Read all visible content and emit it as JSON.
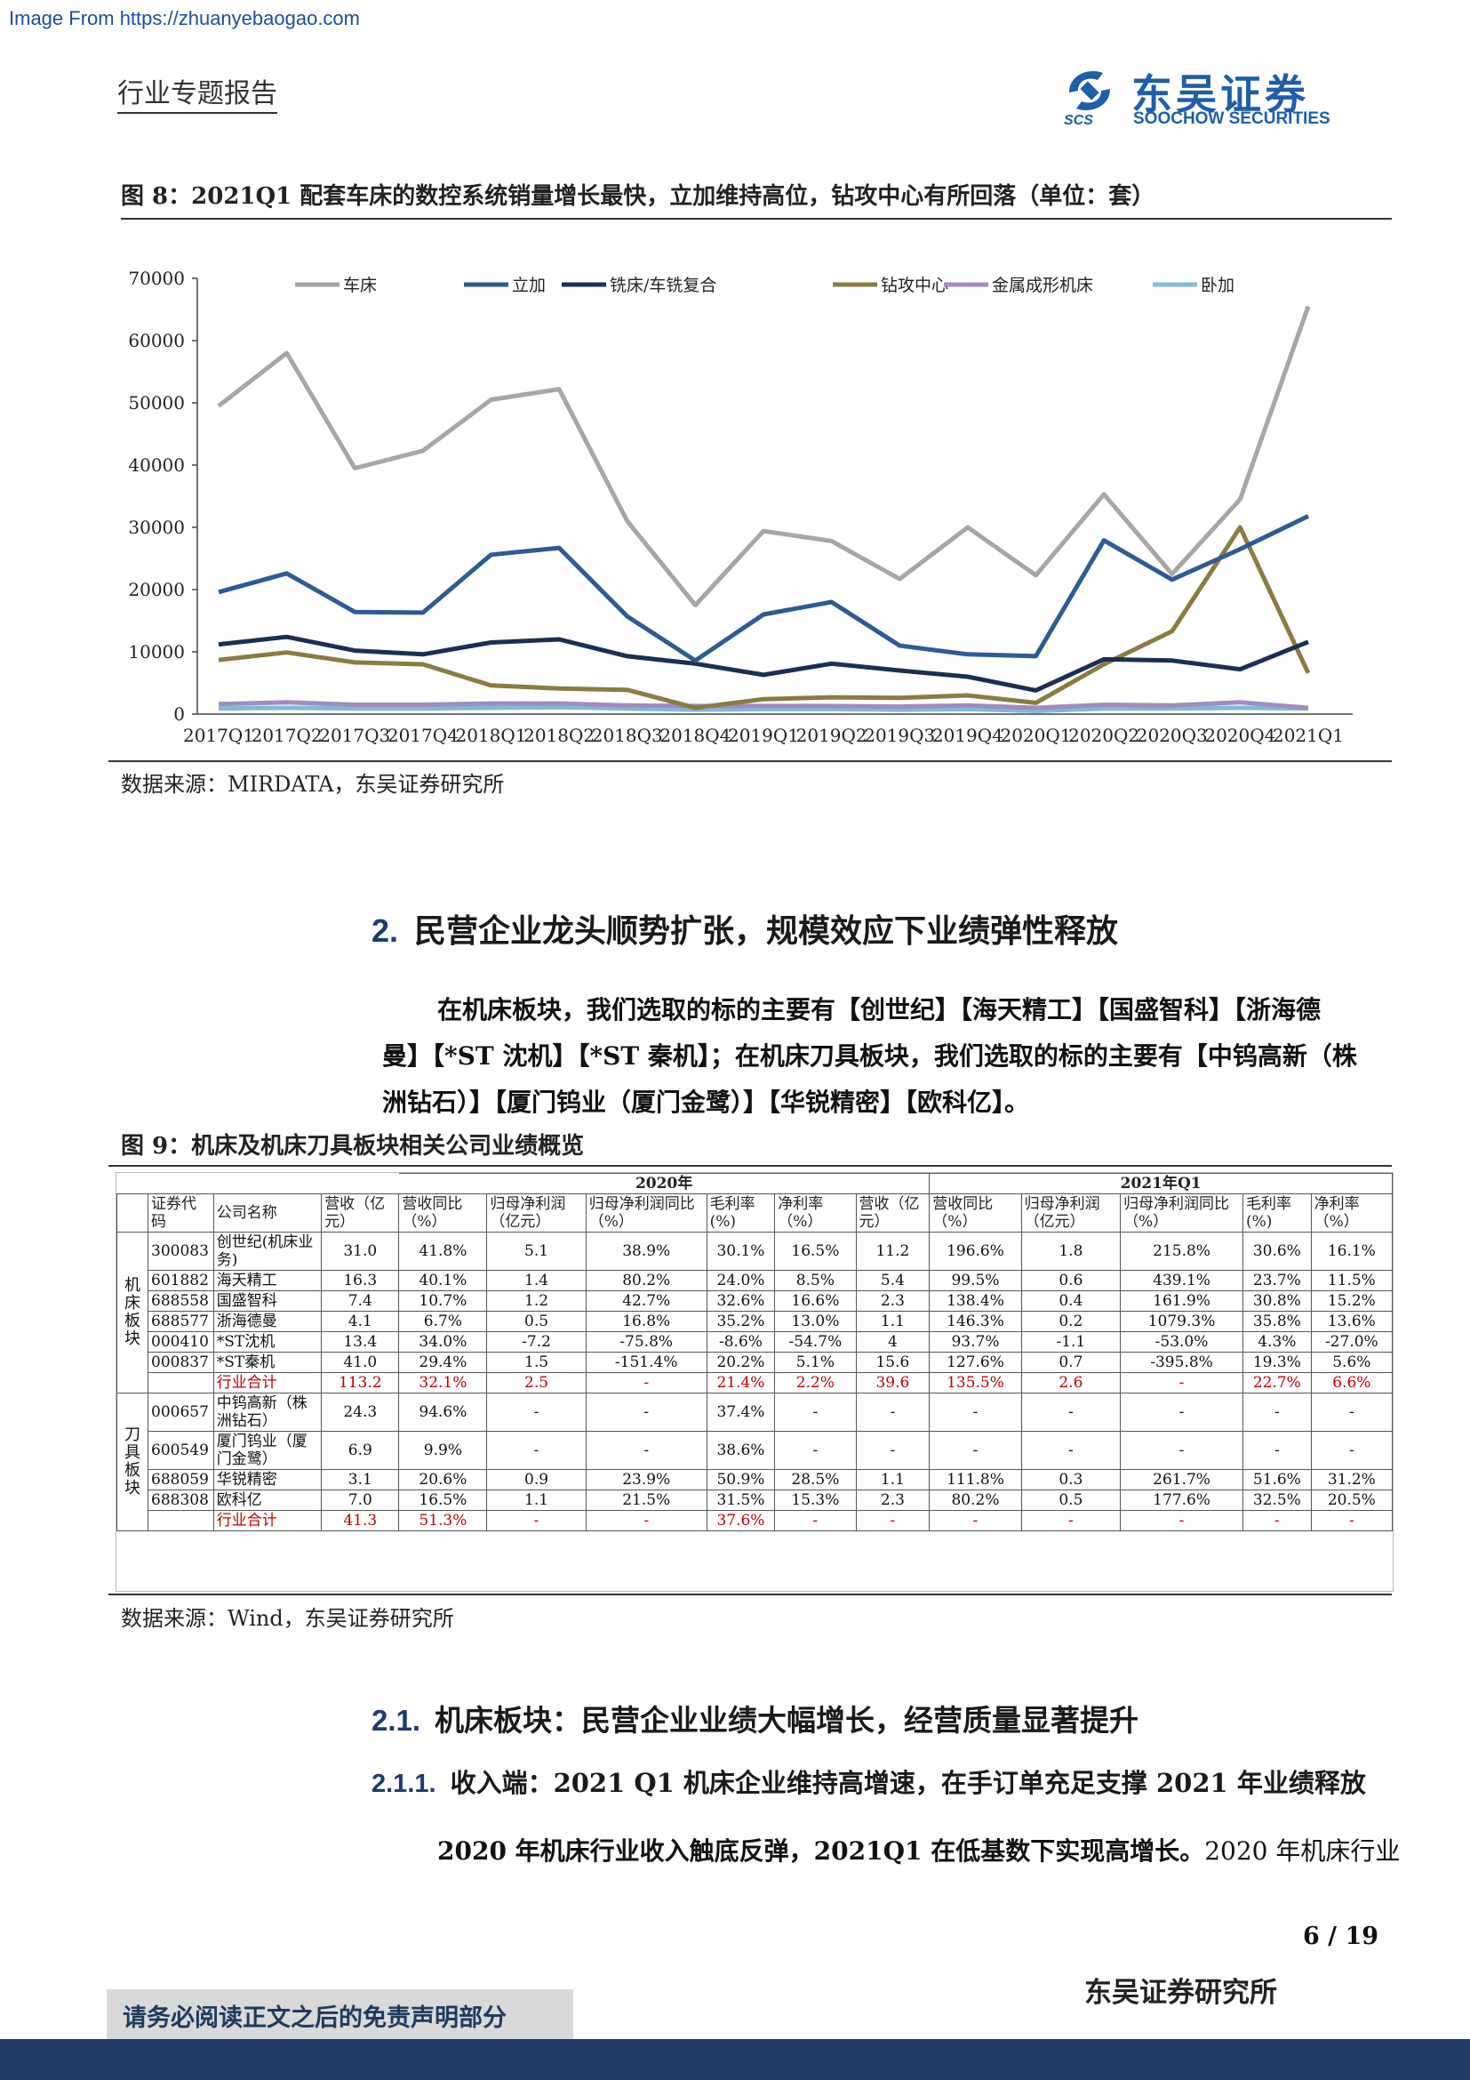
{
  "watermark": "Image From https://zhuanyebaogao.com",
  "header": {
    "report_type": "行业专题报告",
    "logo_cn": "东吴证券",
    "logo_en": "SOOCHOW SECURITIES",
    "logo_mark": "SCS"
  },
  "figure8": {
    "title": "图 8：2021Q1 配套车床的数控系统销量增长最快，立加维持高位，钻攻中心有所回落（单位：套）",
    "source": "数据来源：MIRDATA，东吴证券研究所"
  },
  "chart_data": {
    "type": "line",
    "title": "",
    "xlabel": "",
    "ylabel": "",
    "ylim": [
      0,
      70000
    ],
    "yticks": [
      0,
      10000,
      20000,
      30000,
      40000,
      50000,
      60000,
      70000
    ],
    "grid": false,
    "legend_position": "top",
    "categories": [
      "2017Q1",
      "2017Q2",
      "2017Q3",
      "2017Q4",
      "2018Q1",
      "2018Q2",
      "2018Q3",
      "2018Q4",
      "2019Q1",
      "2019Q2",
      "2019Q3",
      "2019Q4",
      "2020Q1",
      "2020Q2",
      "2020Q3",
      "2020Q4",
      "2021Q1"
    ],
    "series": [
      {
        "name": "车床",
        "color": "#a6a6a6",
        "values": [
          49500,
          58000,
          39500,
          42300,
          50500,
          52200,
          31000,
          17500,
          29400,
          27800,
          21700,
          30000,
          22300,
          35300,
          22500,
          34500,
          65500
        ]
      },
      {
        "name": "立加",
        "color": "#2e5b94",
        "values": [
          19600,
          22600,
          16400,
          16300,
          25600,
          26700,
          15700,
          8600,
          16000,
          18000,
          11000,
          9600,
          9300,
          27900,
          21600,
          26500,
          31800
        ]
      },
      {
        "name": "铣床/车铣复合",
        "color": "#1b2f52",
        "values": [
          11200,
          12400,
          10200,
          9600,
          11500,
          12000,
          9300,
          8100,
          6300,
          8100,
          7000,
          6000,
          3800,
          8800,
          8600,
          7200,
          11600
        ]
      },
      {
        "name": "钻攻中心",
        "color": "#8a7b41",
        "values": [
          8700,
          9900,
          8300,
          8000,
          4600,
          4100,
          3900,
          1000,
          2400,
          2700,
          2600,
          3000,
          1800,
          8000,
          13300,
          30000,
          6600
        ]
      },
      {
        "name": "金属成形机床",
        "color": "#a08cc0",
        "values": [
          1600,
          1900,
          1500,
          1500,
          1700,
          1700,
          1400,
          1300,
          1300,
          1300,
          1200,
          1400,
          1000,
          1500,
          1400,
          1900,
          1000
        ]
      },
      {
        "name": "卧加",
        "color": "#7fbad8",
        "values": [
          900,
          1000,
          900,
          900,
          1000,
          1100,
          900,
          700,
          800,
          800,
          700,
          800,
          500,
          900,
          900,
          1000,
          900
        ]
      }
    ]
  },
  "section2": {
    "number": "2.",
    "title": "民营企业龙头顺势扩张，规模效应下业绩弹性释放",
    "para_lines": [
      "在机床板块，我们选取的标的主要有【创世纪】【海天精工】【国盛智科】【浙海德",
      "曼】【*ST 沈机】【*ST 秦机】；在机床刀具板块，我们选取的标的主要有【中钨高新（株",
      "洲钻石）】【厦门钨业（厦门金鹭）】【华锐精密】【欧科亿】。"
    ]
  },
  "figure9": {
    "title": "图 9：机床及机床刀具板块相关公司业绩概览",
    "source": "数据来源：Wind，东吴证券研究所",
    "year_headers": [
      "2020年",
      "2021年Q1"
    ],
    "col_headers": [
      "证券代码",
      "公司名称",
      "营收（亿元）",
      "营收同比（%）",
      "归母净利润（亿元）",
      "归母净利润同比（%）",
      "毛利率(%)",
      "净利率（%）",
      "营收（亿元）",
      "营收同比（%）",
      "归母净利润（亿元）",
      "归母净利润同比（%）",
      "毛利率(%)",
      "净利率（%）"
    ],
    "sections": [
      {
        "label": "机床板块",
        "rows": [
          {
            "cells": [
              "300083",
              "创世纪(机床业务)",
              "31.0",
              "41.8%",
              "5.1",
              "38.9%",
              "30.1%",
              "16.5%",
              "11.2",
              "196.6%",
              "1.8",
              "215.8%",
              "30.6%",
              "16.1%"
            ]
          },
          {
            "cells": [
              "601882",
              "海天精工",
              "16.3",
              "40.1%",
              "1.4",
              "80.2%",
              "24.0%",
              "8.5%",
              "5.4",
              "99.5%",
              "0.6",
              "439.1%",
              "23.7%",
              "11.5%"
            ]
          },
          {
            "cells": [
              "688558",
              "国盛智科",
              "7.4",
              "10.7%",
              "1.2",
              "42.7%",
              "32.6%",
              "16.6%",
              "2.3",
              "138.4%",
              "0.4",
              "161.9%",
              "30.8%",
              "15.2%"
            ]
          },
          {
            "cells": [
              "688577",
              "浙海德曼",
              "4.1",
              "6.7%",
              "0.5",
              "16.8%",
              "35.2%",
              "13.0%",
              "1.1",
              "146.3%",
              "0.2",
              "1079.3%",
              "35.8%",
              "13.6%"
            ]
          },
          {
            "cells": [
              "000410",
              "*ST沈机",
              "13.4",
              "34.0%",
              "-7.2",
              "-75.8%",
              "-8.6%",
              "-54.7%",
              "4",
              "93.7%",
              "-1.1",
              "-53.0%",
              "4.3%",
              "-27.0%"
            ]
          },
          {
            "cells": [
              "000837",
              "*ST秦机",
              "41.0",
              "29.4%",
              "1.5",
              "-151.4%",
              "20.2%",
              "5.1%",
              "15.6",
              "127.6%",
              "0.7",
              "-395.8%",
              "19.3%",
              "5.6%"
            ]
          }
        ],
        "total": [
          "",
          "行业合计",
          "113.2",
          "32.1%",
          "2.5",
          "-",
          "21.4%",
          "2.2%",
          "39.6",
          "135.5%",
          "2.6",
          "-",
          "22.7%",
          "6.6%"
        ]
      },
      {
        "label": "刀具板块",
        "rows": [
          {
            "cells": [
              "000657",
              "中钨高新（株洲钻石）",
              "24.3",
              "94.6%",
              "-",
              "-",
              "37.4%",
              "-",
              "-",
              "-",
              "-",
              "-",
              "-",
              "-"
            ]
          },
          {
            "cells": [
              "600549",
              "厦门钨业（厦门金鹭）",
              "6.9",
              "9.9%",
              "-",
              "-",
              "38.6%",
              "-",
              "-",
              "-",
              "-",
              "-",
              "-",
              "-"
            ]
          },
          {
            "cells": [
              "688059",
              "华锐精密",
              "3.1",
              "20.6%",
              "0.9",
              "23.9%",
              "50.9%",
              "28.5%",
              "1.1",
              "111.8%",
              "0.3",
              "261.7%",
              "51.6%",
              "31.2%"
            ]
          },
          {
            "cells": [
              "688308",
              "欧科亿",
              "7.0",
              "16.5%",
              "1.1",
              "21.5%",
              "31.5%",
              "15.3%",
              "2.3",
              "80.2%",
              "0.5",
              "177.6%",
              "32.5%",
              "20.5%"
            ]
          }
        ],
        "total": [
          "",
          "行业合计",
          "41.3",
          "51.3%",
          "-",
          "-",
          "37.6%",
          "-",
          "-",
          "-",
          "-",
          "-",
          "-",
          "-"
        ]
      }
    ]
  },
  "section21": {
    "number": "2.1.",
    "title": "机床板块：民营企业业绩大幅增长，经营质量显著提升"
  },
  "section211": {
    "number": "2.1.1.",
    "title": "收入端：2021 Q1 机床企业维持高增速，在手订单充足支撑 2021 年业绩释放"
  },
  "para2": {
    "bold": "2020 年机床行业收入触底反弹，2021Q1 在低基数下实现高增长。",
    "rest": "2020 年机床行业"
  },
  "footer": {
    "page": "6 / 19",
    "institute": "东吴证券研究所",
    "disclaimer": "请务必阅读正文之后的免责声明部分"
  }
}
